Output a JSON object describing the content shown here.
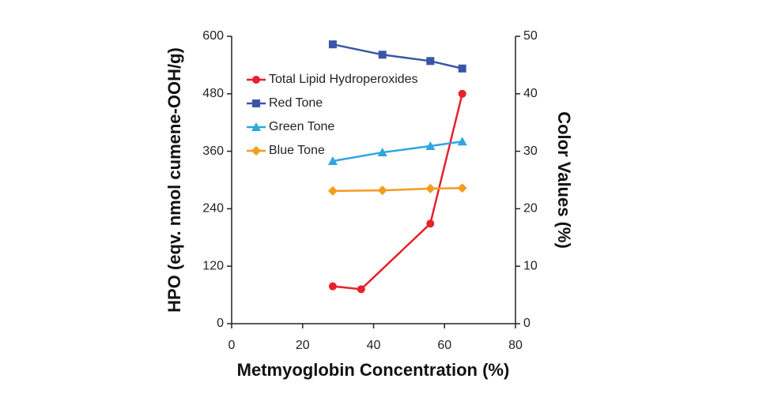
{
  "chart_data": {
    "type": "line",
    "xlabel": "Metmyoglobin Concentration (%)",
    "ylabel": "HPO (eqv. nmol cumene-OOH/g)",
    "y2label": "Color Values (%)",
    "xlim": [
      0,
      80
    ],
    "xticks": [
      0,
      20,
      40,
      60,
      80
    ],
    "ylim": [
      0,
      600
    ],
    "yticks": [
      0,
      120,
      240,
      360,
      480,
      600
    ],
    "y2lim": [
      0,
      50
    ],
    "y2ticks": [
      0,
      10,
      20,
      30,
      40,
      50
    ],
    "legend": "upper left",
    "series": [
      {
        "name": "Total Lipid Hydroperoxides",
        "color": "#e8202a",
        "marker": "circle",
        "x": [
          28.5,
          36.5,
          56,
          65
        ],
        "values": [
          78,
          72,
          209,
          480
        ]
      },
      {
        "name": "Red Tone",
        "color": "#3a55a8",
        "marker": "square",
        "axis": "y2",
        "x": [
          28.5,
          42.5,
          56,
          65
        ],
        "values": [
          48.6,
          46.8,
          45.7,
          44.4
        ]
      },
      {
        "name": "Green Tone",
        "color": "#2ea6de",
        "marker": "triangle",
        "axis": "y2",
        "x": [
          28.5,
          42.5,
          56,
          65
        ],
        "values": [
          28.3,
          29.8,
          30.9,
          31.7
        ]
      },
      {
        "name": "Blue Tone",
        "color": "#f39c1e",
        "marker": "diamond",
        "axis": "y2",
        "x": [
          28.5,
          42.5,
          56,
          65
        ],
        "values": [
          23.1,
          23.2,
          23.5,
          23.6
        ]
      }
    ]
  }
}
